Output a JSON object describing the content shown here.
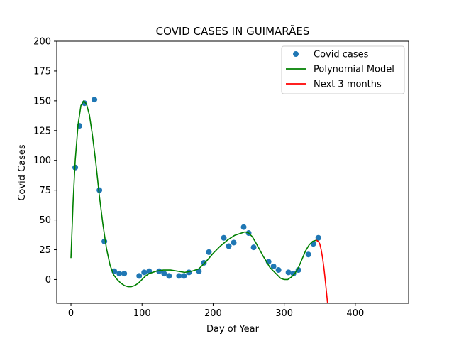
{
  "chart_data": {
    "type": "scatter",
    "title": "COVID CASES IN GUIMARÃES",
    "xlabel": "Day of Year",
    "ylabel": "Covid Cases",
    "xlim": [
      -20,
      475
    ],
    "ylim": [
      -20,
      200
    ],
    "xticks": [
      0,
      100,
      200,
      300,
      400
    ],
    "yticks": [
      0,
      25,
      50,
      75,
      100,
      125,
      150,
      175,
      200
    ],
    "grid": false,
    "legend_position": "top-right",
    "colors": {
      "points": "#1f77b4",
      "model": "#008000",
      "forecast": "#ff0000"
    },
    "series": [
      {
        "name": "Covid cases",
        "kind": "scatter",
        "points": [
          [
            6,
            94
          ],
          [
            12,
            129
          ],
          [
            19,
            148
          ],
          [
            33,
            151
          ],
          [
            40,
            75
          ],
          [
            47,
            32
          ],
          [
            61,
            7
          ],
          [
            68,
            5
          ],
          [
            75,
            5
          ],
          [
            96,
            3
          ],
          [
            103,
            6
          ],
          [
            110,
            7
          ],
          [
            124,
            7
          ],
          [
            131,
            5
          ],
          [
            138,
            3
          ],
          [
            152,
            3
          ],
          [
            159,
            3
          ],
          [
            166,
            6
          ],
          [
            180,
            7
          ],
          [
            187,
            14
          ],
          [
            194,
            23
          ],
          [
            215,
            35
          ],
          [
            222,
            28
          ],
          [
            229,
            31
          ],
          [
            243,
            44
          ],
          [
            250,
            39
          ],
          [
            257,
            27
          ],
          [
            278,
            15
          ],
          [
            285,
            11
          ],
          [
            292,
            8
          ],
          [
            306,
            6
          ],
          [
            313,
            5
          ],
          [
            320,
            8
          ],
          [
            334,
            21
          ],
          [
            341,
            30
          ],
          [
            348,
            35
          ]
        ]
      },
      {
        "name": "Polynomial Model",
        "kind": "line",
        "points": [
          [
            0,
            18
          ],
          [
            3,
            65
          ],
          [
            6,
            100
          ],
          [
            10,
            130
          ],
          [
            14,
            146
          ],
          [
            18,
            150
          ],
          [
            22,
            147
          ],
          [
            26,
            138
          ],
          [
            30,
            122
          ],
          [
            35,
            98
          ],
          [
            40,
            70
          ],
          [
            45,
            46
          ],
          [
            50,
            26
          ],
          [
            55,
            12
          ],
          [
            60,
            4
          ],
          [
            65,
            0
          ],
          [
            70,
            -3
          ],
          [
            75,
            -5
          ],
          [
            80,
            -6
          ],
          [
            85,
            -6
          ],
          [
            90,
            -5
          ],
          [
            95,
            -3
          ],
          [
            100,
            0
          ],
          [
            105,
            3
          ],
          [
            110,
            5
          ],
          [
            120,
            7
          ],
          [
            130,
            8
          ],
          [
            140,
            8
          ],
          [
            150,
            7
          ],
          [
            160,
            6
          ],
          [
            170,
            7
          ],
          [
            180,
            9
          ],
          [
            190,
            15
          ],
          [
            200,
            22
          ],
          [
            210,
            28
          ],
          [
            220,
            33
          ],
          [
            230,
            37
          ],
          [
            240,
            39
          ],
          [
            245,
            40
          ],
          [
            250,
            39
          ],
          [
            255,
            36
          ],
          [
            260,
            31
          ],
          [
            270,
            20
          ],
          [
            280,
            10
          ],
          [
            290,
            4
          ],
          [
            295,
            1
          ],
          [
            300,
            0
          ],
          [
            305,
            0
          ],
          [
            310,
            2
          ],
          [
            315,
            5
          ],
          [
            320,
            10
          ],
          [
            325,
            17
          ],
          [
            330,
            24
          ],
          [
            335,
            29
          ],
          [
            340,
            32
          ],
          [
            345,
            33
          ],
          [
            348,
            32
          ]
        ]
      },
      {
        "name": "Next 3 months",
        "kind": "line",
        "points": [
          [
            345,
            33
          ],
          [
            348,
            32
          ],
          [
            350,
            30
          ],
          [
            352,
            25
          ],
          [
            354,
            18
          ],
          [
            356,
            9
          ],
          [
            358,
            -2
          ],
          [
            360,
            -14
          ],
          [
            361,
            -20
          ]
        ]
      }
    ]
  }
}
